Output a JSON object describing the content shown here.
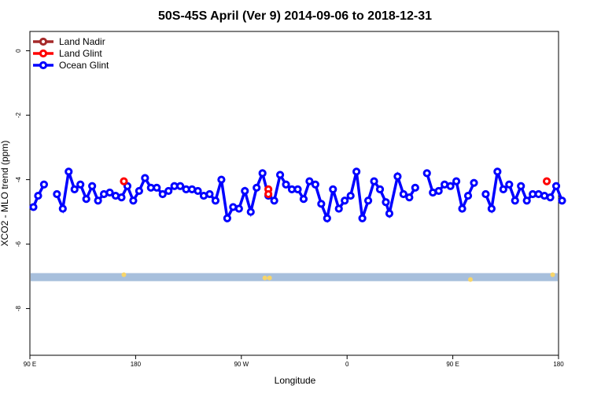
{
  "chart_data": {
    "type": "line",
    "title": "50S-45S April (Ver 9)   2014-09-06 to 2018-12-31",
    "xlabel": "Longitude",
    "ylabel": "XCO2 - MLO trend (ppm)",
    "x_ticks": [
      {
        "value": 90,
        "label": "90 E"
      },
      {
        "value": 180,
        "label": "180"
      },
      {
        "value": 270,
        "label": "90 W"
      },
      {
        "value": 360,
        "label": "0"
      },
      {
        "value": 450,
        "label": "90 E"
      },
      {
        "value": 540,
        "label": "180"
      }
    ],
    "y_ticks": [
      {
        "value": 0,
        "label": "0"
      },
      {
        "value": -2,
        "label": "-2"
      },
      {
        "value": -4,
        "label": "-4"
      },
      {
        "value": -6,
        "label": "-6"
      },
      {
        "value": -8,
        "label": "-8"
      }
    ],
    "xlim": [
      90,
      540
    ],
    "ylim": [
      -9.45,
      0.6
    ],
    "grid": false,
    "legend_position": "top-left",
    "legend": [
      {
        "label": "Land Nadir",
        "color": "#a52a2a"
      },
      {
        "label": "Land Glint",
        "color": "#ff0000"
      },
      {
        "label": "Ocean Glint",
        "color": "#0000ff"
      }
    ],
    "series": [
      {
        "name": "Ocean Glint",
        "color": "#0000ff",
        "segments": [
          [
            [
              93,
              -4.85
            ],
            [
              97,
              -4.5
            ],
            [
              102,
              -4.15
            ]
          ],
          [
            [
              113,
              -4.45
            ],
            [
              118,
              -4.9
            ],
            [
              123,
              -3.75
            ],
            [
              128,
              -4.3
            ],
            [
              133,
              -4.15
            ],
            [
              138,
              -4.6
            ],
            [
              143,
              -4.2
            ],
            [
              148,
              -4.65
            ],
            [
              153,
              -4.45
            ],
            [
              158,
              -4.4
            ],
            [
              163,
              -4.5
            ],
            [
              168,
              -4.55
            ],
            [
              173,
              -4.2
            ],
            [
              178,
              -4.65
            ],
            [
              183,
              -4.35
            ],
            [
              188,
              -3.95
            ],
            [
              193,
              -4.25
            ],
            [
              198,
              -4.25
            ],
            [
              203,
              -4.45
            ],
            [
              208,
              -4.35
            ],
            [
              213,
              -4.2
            ],
            [
              218,
              -4.2
            ],
            [
              223,
              -4.3
            ],
            [
              228,
              -4.3
            ],
            [
              233,
              -4.35
            ],
            [
              238,
              -4.5
            ],
            [
              243,
              -4.45
            ],
            [
              248,
              -4.65
            ],
            [
              253,
              -4.0
            ],
            [
              258,
              -5.2
            ],
            [
              263,
              -4.85
            ],
            [
              268,
              -4.9
            ],
            [
              273,
              -4.35
            ],
            [
              278,
              -5.0
            ],
            [
              283,
              -4.25
            ],
            [
              288,
              -3.8
            ],
            [
              293,
              -4.5
            ],
            [
              298,
              -4.65
            ],
            [
              303,
              -3.85
            ],
            [
              308,
              -4.15
            ],
            [
              313,
              -4.3
            ],
            [
              318,
              -4.3
            ],
            [
              323,
              -4.6
            ],
            [
              328,
              -4.05
            ],
            [
              333,
              -4.15
            ],
            [
              338,
              -4.75
            ],
            [
              343,
              -5.2
            ],
            [
              348,
              -4.3
            ],
            [
              353,
              -4.9
            ],
            [
              358,
              -4.65
            ],
            [
              363,
              -4.5
            ],
            [
              368,
              -3.75
            ],
            [
              373,
              -5.2
            ],
            [
              378,
              -4.65
            ],
            [
              383,
              -4.05
            ],
            [
              388,
              -4.3
            ],
            [
              393,
              -4.7
            ],
            [
              396,
              -5.05
            ],
            [
              403,
              -3.9
            ],
            [
              408,
              -4.45
            ],
            [
              413,
              -4.55
            ],
            [
              418,
              -4.25
            ]
          ],
          [
            [
              428,
              -3.8
            ],
            [
              433,
              -4.4
            ],
            [
              438,
              -4.35
            ],
            [
              443,
              -4.15
            ],
            [
              448,
              -4.2
            ],
            [
              453,
              -4.05
            ],
            [
              458,
              -4.9
            ],
            [
              463,
              -4.5
            ],
            [
              468,
              -4.1
            ]
          ],
          [
            [
              478,
              -4.45
            ],
            [
              483,
              -4.9
            ],
            [
              488,
              -3.75
            ],
            [
              493,
              -4.3
            ],
            [
              498,
              -4.15
            ],
            [
              503,
              -4.65
            ],
            [
              508,
              -4.2
            ],
            [
              513,
              -4.65
            ],
            [
              518,
              -4.45
            ],
            [
              523,
              -4.45
            ],
            [
              528,
              -4.5
            ],
            [
              533,
              -4.55
            ],
            [
              538,
              -4.2
            ],
            [
              543,
              -4.65
            ]
          ]
        ]
      },
      {
        "name": "Land Glint",
        "color": "#ff0000",
        "points": [
          [
            170,
            -4.05
          ],
          [
            293,
            -4.3
          ],
          [
            293,
            -4.45
          ],
          [
            530,
            -4.05
          ]
        ]
      }
    ],
    "background_band": {
      "y_from": -7.15,
      "y_to": -6.9,
      "color": "#a7bfdc"
    },
    "land_marks_on_band": {
      "color": "#f7d56a",
      "points": [
        [
          170,
          -6.95
        ],
        [
          290,
          -7.05
        ],
        [
          294,
          -7.05
        ],
        [
          465,
          -7.1
        ],
        [
          535,
          -6.95
        ]
      ]
    }
  }
}
